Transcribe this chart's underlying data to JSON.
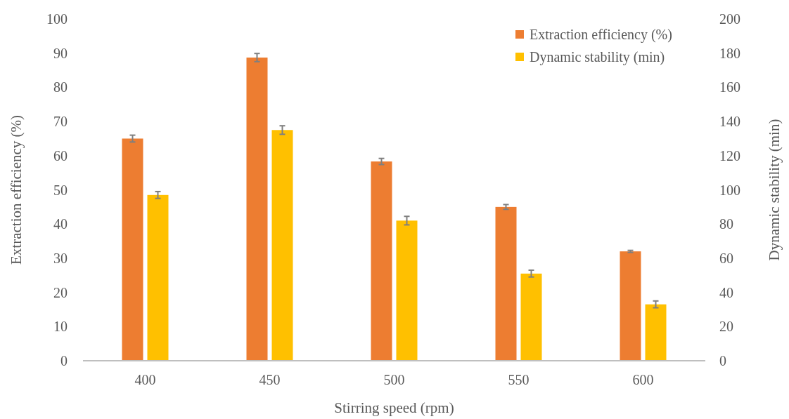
{
  "chart_data": {
    "type": "bar",
    "xlabel": "Stirring speed (rpm)",
    "ylabel": "Extraction efficiency (%)",
    "y2label": "Dynamic stability (min)",
    "categories": [
      "400",
      "450",
      "500",
      "550",
      "600"
    ],
    "series": [
      {
        "name": "Extraction efficiency (%)",
        "color": "#ed7d31",
        "values": [
          65,
          88.7,
          58.3,
          45,
          32
        ],
        "errors": [
          1,
          1.2,
          0.9,
          0.7,
          0.3
        ]
      },
      {
        "name": "Dynamic stability (min)",
        "color": "#ffc000",
        "values": [
          97,
          135,
          82,
          51,
          33
        ],
        "errors": [
          2,
          2.5,
          2.5,
          2,
          2
        ],
        "axis": "y2"
      }
    ],
    "ylim": [
      0,
      100
    ],
    "yticks": [
      0,
      10,
      20,
      30,
      40,
      50,
      60,
      70,
      80,
      90,
      100
    ],
    "y2lim": [
      0,
      200
    ],
    "y2ticks": [
      0,
      20,
      40,
      60,
      80,
      100,
      120,
      140,
      160,
      180,
      200
    ],
    "grid": false,
    "legend": "top right"
  }
}
